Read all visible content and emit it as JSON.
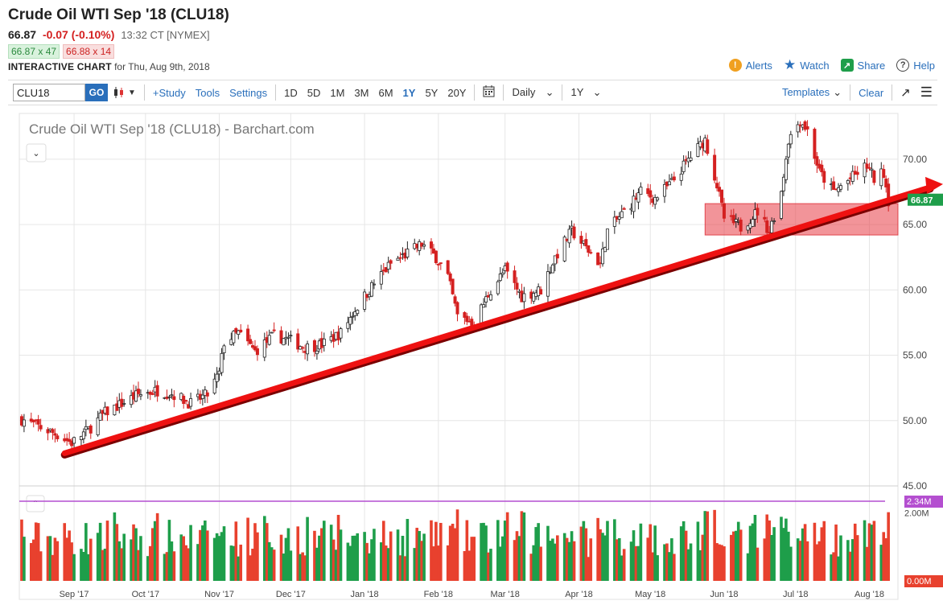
{
  "header": {
    "title": "Crude Oil WTI Sep '18 (CLU18)",
    "last": "66.87",
    "change": "-0.07 (-0.10%)",
    "time": "13:32 CT [NYMEX]",
    "bid": "66.87 x 47",
    "ask": "66.88 x 14",
    "interactive_label": "INTERACTIVE CHART",
    "date_label": "for Thu, Aug 9th, 2018"
  },
  "actions": {
    "alerts": "Alerts",
    "watch": "Watch",
    "share": "Share",
    "help": "Help"
  },
  "toolbar": {
    "symbol": "CLU18",
    "go": "GO",
    "study": "+Study",
    "tools": "Tools",
    "settings": "Settings",
    "periods": [
      "1D",
      "5D",
      "1M",
      "3M",
      "6M",
      "1Y",
      "5Y",
      "20Y"
    ],
    "active_period": "1Y",
    "interval": "Daily",
    "range": "1Y",
    "templates": "Templates",
    "clear": "Clear"
  },
  "colors": {
    "up": "#1e9e4a",
    "down": "#e8412e",
    "accent": "#2a6fbb",
    "avg": "#b44fd0"
  },
  "chart_data": {
    "type": "candlestick",
    "title": "Crude Oil WTI Sep '18 (CLU18) - Barchart.com",
    "y_ticks": [
      "70.00",
      "65.00",
      "60.00",
      "55.00",
      "50.00",
      "45.00"
    ],
    "ylim": [
      45,
      73.5
    ],
    "x_ticks": [
      "Sep '17",
      "Oct '17",
      "Nov '17",
      "Dec '17",
      "Jan '18",
      "Feb '18",
      "Mar '18",
      "Apr '18",
      "May '18",
      "Jun '18",
      "Jul '18",
      "Aug '18"
    ],
    "last_price_label": "66.87",
    "close_path": [
      [
        "2017-08-10",
        50.1
      ],
      [
        "2017-08-24",
        49.0
      ],
      [
        "2017-08-31",
        48.3
      ],
      [
        "2017-09-07",
        49.3
      ],
      [
        "2017-09-14",
        50.6
      ],
      [
        "2017-09-28",
        52.0
      ],
      [
        "2017-10-06",
        52.3
      ],
      [
        "2017-10-13",
        52.0
      ],
      [
        "2017-10-20",
        51.3
      ],
      [
        "2017-10-27",
        52.0
      ],
      [
        "2017-11-01",
        53.6
      ],
      [
        "2017-11-03",
        56.0
      ],
      [
        "2017-11-09",
        56.7
      ],
      [
        "2017-11-16",
        55.3
      ],
      [
        "2017-11-24",
        56.5
      ],
      [
        "2017-11-30",
        56.2
      ],
      [
        "2017-12-07",
        55.6
      ],
      [
        "2017-12-14",
        55.8
      ],
      [
        "2017-12-22",
        56.7
      ],
      [
        "2017-12-28",
        58.5
      ],
      [
        "2018-01-05",
        60.5
      ],
      [
        "2018-01-12",
        62.0
      ],
      [
        "2018-01-19",
        62.8
      ],
      [
        "2018-01-25",
        63.5
      ],
      [
        "2018-01-31",
        62.5
      ],
      [
        "2018-02-05",
        61.0
      ],
      [
        "2018-02-09",
        58.0
      ],
      [
        "2018-02-16",
        57.5
      ],
      [
        "2018-02-23",
        60.0
      ],
      [
        "2018-03-01",
        61.5
      ],
      [
        "2018-03-08",
        59.5
      ],
      [
        "2018-03-16",
        60.0
      ],
      [
        "2018-03-22",
        62.5
      ],
      [
        "2018-03-29",
        64.5
      ],
      [
        "2018-04-05",
        63.0
      ],
      [
        "2018-04-10",
        62.0
      ],
      [
        "2018-04-13",
        64.5
      ],
      [
        "2018-04-20",
        66.0
      ],
      [
        "2018-04-27",
        67.5
      ],
      [
        "2018-05-03",
        67.0
      ],
      [
        "2018-05-10",
        68.2
      ],
      [
        "2018-05-17",
        70.0
      ],
      [
        "2018-05-24",
        71.5
      ],
      [
        "2018-05-29",
        68.0
      ],
      [
        "2018-06-01",
        65.5
      ],
      [
        "2018-06-08",
        64.8
      ],
      [
        "2018-06-15",
        66.0
      ],
      [
        "2018-06-20",
        64.5
      ],
      [
        "2018-06-25",
        67.5
      ],
      [
        "2018-06-28",
        71.5
      ],
      [
        "2018-07-03",
        73.0
      ],
      [
        "2018-07-06",
        72.2
      ],
      [
        "2018-07-11",
        69.0
      ],
      [
        "2018-07-17",
        67.5
      ],
      [
        "2018-07-24",
        68.5
      ],
      [
        "2018-07-31",
        69.5
      ],
      [
        "2018-08-03",
        68.5
      ],
      [
        "2018-08-07",
        69.0
      ],
      [
        "2018-08-09",
        66.87
      ]
    ],
    "trendline": [
      [
        "2017-08-28",
        47.5
      ],
      [
        "2018-08-13",
        67.6
      ]
    ],
    "support_zone": {
      "from": "2018-05-24",
      "to": "2018-08-13",
      "low": 64.2,
      "high": 66.6
    },
    "volume": {
      "ticks": [
        "2.34M",
        "2.00M",
        "0.00M"
      ],
      "average_label": "2.34M",
      "average_level": 2.34,
      "max": 2.6
    }
  }
}
